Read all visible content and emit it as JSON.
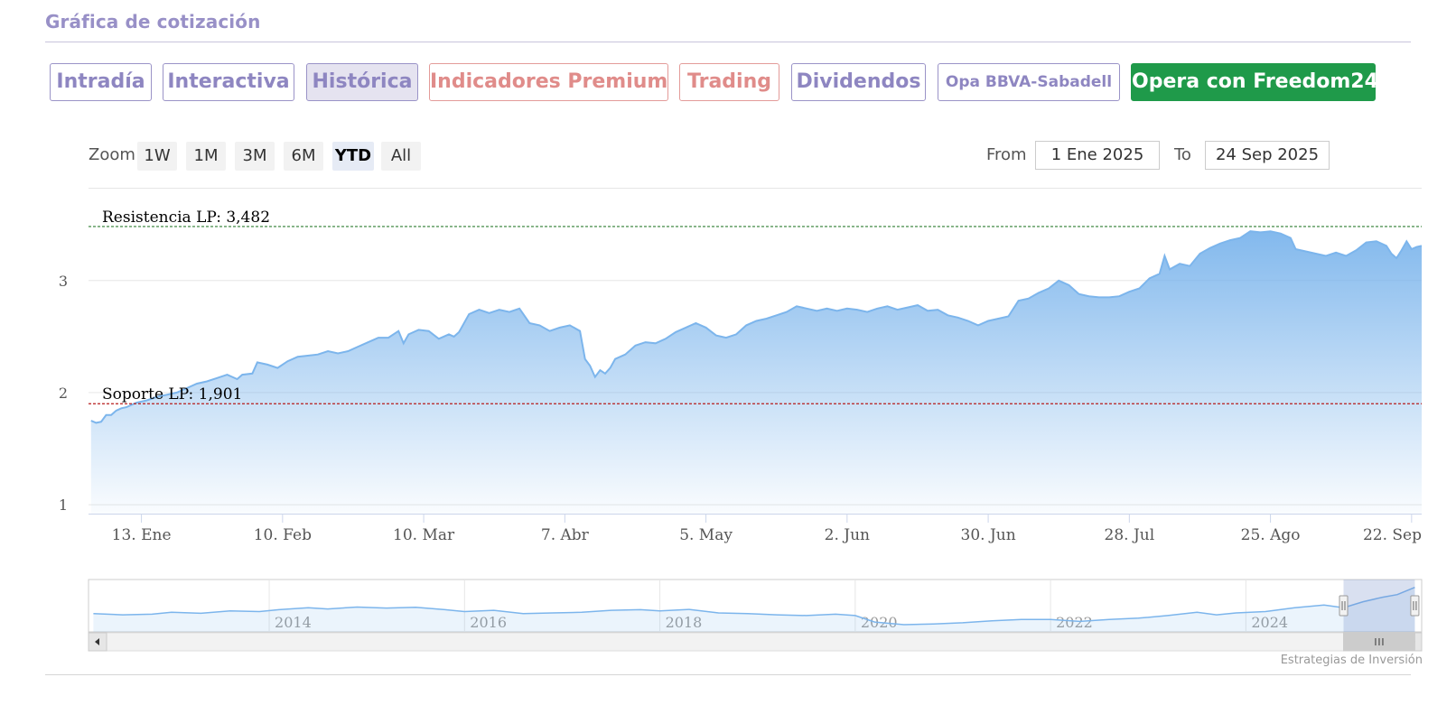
{
  "header": {
    "title": "Gráfica de cotización"
  },
  "tabs": [
    {
      "label": "Intradía",
      "style": "normal",
      "active": false
    },
    {
      "label": "Interactiva",
      "style": "normal",
      "active": false
    },
    {
      "label": "Histórica",
      "style": "normal",
      "active": true
    },
    {
      "label": "Indicadores Premium",
      "style": "premium",
      "active": false
    },
    {
      "label": "Trading",
      "style": "premium",
      "active": false
    },
    {
      "label": "Dividendos",
      "style": "normal",
      "active": false
    },
    {
      "label": "Opa BBVA-Sabadell",
      "style": "small",
      "active": false
    },
    {
      "label": "Opera con Freedom24",
      "style": "cta",
      "active": false
    }
  ],
  "zoom": {
    "label": "Zoom",
    "buttons": [
      "1W",
      "1M",
      "3M",
      "6M",
      "YTD",
      "All"
    ],
    "selected": "YTD"
  },
  "range": {
    "from_label": "From",
    "from_value": "1 Ene 2025",
    "to_label": "To",
    "to_value": "24 Sep 2025"
  },
  "colors": {
    "line": "#7cb5ec",
    "resistance": "#2e7d32",
    "support": "#b71c1c",
    "title": "#9890c7",
    "cta": "#1f9a4a"
  },
  "chart_data": {
    "type": "area",
    "title": "",
    "xlabel": "",
    "ylabel": "",
    "ylim": [
      0.92,
      3.82
    ],
    "yticks": [
      1,
      2,
      3
    ],
    "grid": true,
    "x_ticks": [
      {
        "label": "13. Ene",
        "day": 13
      },
      {
        "label": "10. Feb",
        "day": 41
      },
      {
        "label": "10. Mar",
        "day": 69
      },
      {
        "label": "7. Abr",
        "day": 97
      },
      {
        "label": "5. May",
        "day": 125
      },
      {
        "label": "2. Jun",
        "day": 153
      },
      {
        "label": "30. Jun",
        "day": 181
      },
      {
        "label": "28. Jul",
        "day": 209
      },
      {
        "label": "25. Ago",
        "day": 237
      },
      {
        "label": "22. Sep",
        "day": 265
      }
    ],
    "x_range_days": [
      2.5,
      267
    ],
    "series": [
      {
        "name": "",
        "points": [
          [
            3,
            1.75
          ],
          [
            4,
            1.73
          ],
          [
            5,
            1.74
          ],
          [
            6,
            1.8
          ],
          [
            7,
            1.8
          ],
          [
            8,
            1.84
          ],
          [
            9,
            1.86
          ],
          [
            10,
            1.87
          ],
          [
            11,
            1.89
          ],
          [
            12,
            1.91
          ],
          [
            14,
            1.93
          ],
          [
            16,
            1.96
          ],
          [
            18,
            1.98
          ],
          [
            20,
            2.0
          ],
          [
            22,
            2.04
          ],
          [
            24,
            2.08
          ],
          [
            26,
            2.1
          ],
          [
            28,
            2.13
          ],
          [
            30,
            2.16
          ],
          [
            32,
            2.12
          ],
          [
            33,
            2.16
          ],
          [
            35,
            2.17
          ],
          [
            36,
            2.27
          ],
          [
            38,
            2.25
          ],
          [
            40,
            2.22
          ],
          [
            42,
            2.28
          ],
          [
            44,
            2.32
          ],
          [
            46,
            2.33
          ],
          [
            48,
            2.34
          ],
          [
            50,
            2.37
          ],
          [
            52,
            2.35
          ],
          [
            54,
            2.37
          ],
          [
            56,
            2.41
          ],
          [
            58,
            2.45
          ],
          [
            60,
            2.49
          ],
          [
            62,
            2.49
          ],
          [
            64,
            2.55
          ],
          [
            65,
            2.44
          ],
          [
            66,
            2.52
          ],
          [
            68,
            2.56
          ],
          [
            70,
            2.55
          ],
          [
            72,
            2.48
          ],
          [
            74,
            2.52
          ],
          [
            75,
            2.5
          ],
          [
            76,
            2.54
          ],
          [
            78,
            2.7
          ],
          [
            80,
            2.74
          ],
          [
            82,
            2.71
          ],
          [
            84,
            2.74
          ],
          [
            86,
            2.72
          ],
          [
            88,
            2.75
          ],
          [
            90,
            2.62
          ],
          [
            92,
            2.6
          ],
          [
            94,
            2.55
          ],
          [
            96,
            2.58
          ],
          [
            98,
            2.6
          ],
          [
            100,
            2.55
          ],
          [
            101,
            2.3
          ],
          [
            102,
            2.24
          ],
          [
            103,
            2.14
          ],
          [
            104,
            2.2
          ],
          [
            105,
            2.17
          ],
          [
            106,
            2.22
          ],
          [
            107,
            2.3
          ],
          [
            109,
            2.34
          ],
          [
            111,
            2.42
          ],
          [
            113,
            2.45
          ],
          [
            115,
            2.44
          ],
          [
            117,
            2.48
          ],
          [
            119,
            2.54
          ],
          [
            121,
            2.58
          ],
          [
            123,
            2.62
          ],
          [
            125,
            2.58
          ],
          [
            127,
            2.51
          ],
          [
            129,
            2.49
          ],
          [
            131,
            2.52
          ],
          [
            133,
            2.6
          ],
          [
            135,
            2.64
          ],
          [
            137,
            2.66
          ],
          [
            139,
            2.69
          ],
          [
            141,
            2.72
          ],
          [
            143,
            2.77
          ],
          [
            145,
            2.75
          ],
          [
            147,
            2.73
          ],
          [
            149,
            2.75
          ],
          [
            151,
            2.73
          ],
          [
            153,
            2.75
          ],
          [
            155,
            2.74
          ],
          [
            157,
            2.72
          ],
          [
            159,
            2.75
          ],
          [
            161,
            2.77
          ],
          [
            163,
            2.74
          ],
          [
            165,
            2.76
          ],
          [
            167,
            2.78
          ],
          [
            169,
            2.73
          ],
          [
            171,
            2.74
          ],
          [
            173,
            2.69
          ],
          [
            175,
            2.67
          ],
          [
            177,
            2.64
          ],
          [
            179,
            2.6
          ],
          [
            181,
            2.64
          ],
          [
            183,
            2.66
          ],
          [
            185,
            2.68
          ],
          [
            187,
            2.82
          ],
          [
            189,
            2.84
          ],
          [
            191,
            2.89
          ],
          [
            193,
            2.93
          ],
          [
            195,
            3.0
          ],
          [
            197,
            2.96
          ],
          [
            199,
            2.88
          ],
          [
            201,
            2.86
          ],
          [
            203,
            2.85
          ],
          [
            205,
            2.85
          ],
          [
            207,
            2.86
          ],
          [
            209,
            2.9
          ],
          [
            211,
            2.93
          ],
          [
            213,
            3.02
          ],
          [
            215,
            3.06
          ],
          [
            216,
            3.22
          ],
          [
            217,
            3.1
          ],
          [
            219,
            3.15
          ],
          [
            221,
            3.13
          ],
          [
            223,
            3.24
          ],
          [
            225,
            3.29
          ],
          [
            227,
            3.33
          ],
          [
            229,
            3.36
          ],
          [
            231,
            3.38
          ],
          [
            233,
            3.44
          ],
          [
            235,
            3.43
          ],
          [
            237,
            3.44
          ],
          [
            239,
            3.42
          ],
          [
            241,
            3.38
          ],
          [
            242,
            3.28
          ],
          [
            244,
            3.26
          ],
          [
            246,
            3.24
          ],
          [
            248,
            3.22
          ],
          [
            250,
            3.25
          ],
          [
            252,
            3.22
          ],
          [
            254,
            3.27
          ],
          [
            256,
            3.34
          ],
          [
            258,
            3.35
          ],
          [
            260,
            3.31
          ],
          [
            261,
            3.24
          ],
          [
            262,
            3.2
          ],
          [
            263,
            3.27
          ],
          [
            264,
            3.35
          ],
          [
            265,
            3.28
          ],
          [
            266,
            3.3
          ],
          [
            267,
            3.31
          ]
        ]
      }
    ],
    "annotations": [
      {
        "label": "Resistencia LP: 3,482",
        "value": 3.482,
        "color": "#2e7d32"
      },
      {
        "label": "Soporte LP: 1,901",
        "value": 1.901,
        "color": "#b71c1c"
      }
    ],
    "navigator": {
      "year_labels": [
        "2014",
        "2016",
        "2018",
        "2020",
        "2022",
        "2024"
      ],
      "x_range_years": [
        2012.15,
        2025.8
      ],
      "ylim": [
        0,
        4
      ],
      "selection_years": [
        2025.0,
        2025.73
      ],
      "scroll_thumb_icon": "grip-lines-icon",
      "points": [
        [
          2012.2,
          1.4
        ],
        [
          2012.5,
          1.3
        ],
        [
          2012.8,
          1.35
        ],
        [
          2013.0,
          1.5
        ],
        [
          2013.3,
          1.42
        ],
        [
          2013.6,
          1.6
        ],
        [
          2013.9,
          1.55
        ],
        [
          2014.1,
          1.7
        ],
        [
          2014.4,
          1.85
        ],
        [
          2014.6,
          1.75
        ],
        [
          2014.9,
          1.9
        ],
        [
          2015.2,
          1.82
        ],
        [
          2015.5,
          1.88
        ],
        [
          2015.8,
          1.7
        ],
        [
          2016.0,
          1.55
        ],
        [
          2016.3,
          1.65
        ],
        [
          2016.6,
          1.4
        ],
        [
          2016.9,
          1.45
        ],
        [
          2017.2,
          1.5
        ],
        [
          2017.5,
          1.65
        ],
        [
          2017.8,
          1.7
        ],
        [
          2018.0,
          1.6
        ],
        [
          2018.3,
          1.72
        ],
        [
          2018.6,
          1.45
        ],
        [
          2018.9,
          1.4
        ],
        [
          2019.2,
          1.3
        ],
        [
          2019.5,
          1.25
        ],
        [
          2019.8,
          1.35
        ],
        [
          2020.0,
          1.25
        ],
        [
          2020.2,
          0.75
        ],
        [
          2020.5,
          0.55
        ],
        [
          2020.8,
          0.6
        ],
        [
          2021.1,
          0.7
        ],
        [
          2021.4,
          0.85
        ],
        [
          2021.7,
          0.95
        ],
        [
          2022.0,
          0.95
        ],
        [
          2022.3,
          0.8
        ],
        [
          2022.6,
          0.95
        ],
        [
          2022.9,
          1.05
        ],
        [
          2023.2,
          1.25
        ],
        [
          2023.5,
          1.5
        ],
        [
          2023.7,
          1.3
        ],
        [
          2023.9,
          1.45
        ],
        [
          2024.2,
          1.55
        ],
        [
          2024.5,
          1.85
        ],
        [
          2024.8,
          2.05
        ],
        [
          2025.0,
          1.85
        ],
        [
          2025.2,
          2.3
        ],
        [
          2025.4,
          2.65
        ],
        [
          2025.55,
          2.85
        ],
        [
          2025.73,
          3.4
        ]
      ]
    }
  },
  "credits": "Estrategias de Inversión"
}
